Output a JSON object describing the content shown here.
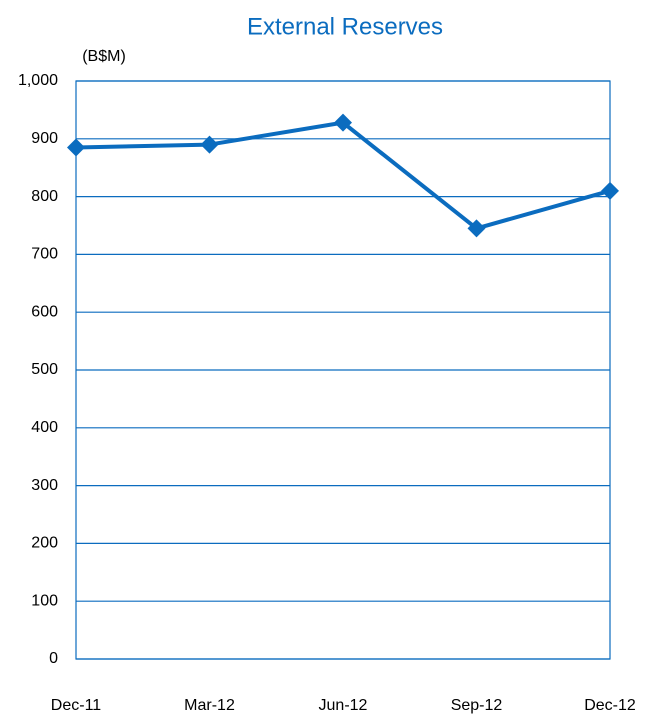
{
  "chart_data": {
    "type": "line",
    "title": "External Reserves",
    "y_label": "(B$M)",
    "categories": [
      "Dec-11",
      "Mar-12",
      "Jun-12",
      "Sep-12",
      "Dec-12"
    ],
    "values": [
      885,
      890,
      928,
      745,
      810
    ],
    "color": "#0b6cbf",
    "ylim": [
      0,
      1000
    ],
    "yticks": [
      0,
      100,
      200,
      300,
      400,
      500,
      600,
      700,
      800,
      900,
      {
        "value": 1000,
        "label": "1,000"
      }
    ],
    "grid": true
  }
}
